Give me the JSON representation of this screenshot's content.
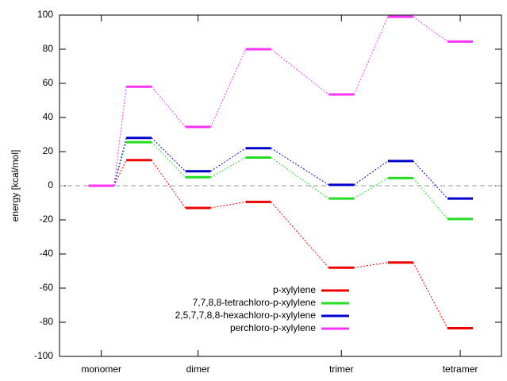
{
  "chart_data": {
    "type": "energy-levels",
    "y_label": "energy [kcal/mol]",
    "x": [
      0.7,
      1.33,
      2.32,
      3.33,
      4.72,
      5.71,
      6.71
    ],
    "xlim": [
      0,
      7.4
    ],
    "xticks": [
      {
        "value": 0.7,
        "label": "monomer"
      },
      {
        "value": 2.32,
        "label": "dimer"
      },
      {
        "value": 4.72,
        "label": "trimer"
      },
      {
        "value": 6.71,
        "label": "tetramer"
      }
    ],
    "ylim": [
      -100,
      100
    ],
    "yticks": [
      -100,
      -80,
      -60,
      -40,
      -20,
      0,
      20,
      40,
      60,
      80,
      100
    ],
    "zero_line": true,
    "legend": "bottom",
    "series": [
      {
        "name": "p-xylylene",
        "color": "#ee0000",
        "values": [
          0,
          15,
          -13,
          -9.5,
          -48,
          -45,
          -83.5
        ]
      },
      {
        "name": "7,7,8,8-tetrachloro-p-xylylene",
        "color": "#22dd22",
        "values": [
          0,
          25.5,
          5,
          16.5,
          -7.5,
          4.5,
          -19.5
        ]
      },
      {
        "name": "2,5,7,7,8,8-hexachloro-p-xylylene",
        "color": "#0000cc",
        "values": [
          0,
          28,
          8.5,
          22,
          0.5,
          14.5,
          -7.5
        ]
      },
      {
        "name": "perchloro-p-xylylene",
        "color": "#ff33ff",
        "values": [
          0,
          58,
          34.5,
          80,
          53.5,
          99,
          84.5
        ]
      }
    ]
  }
}
